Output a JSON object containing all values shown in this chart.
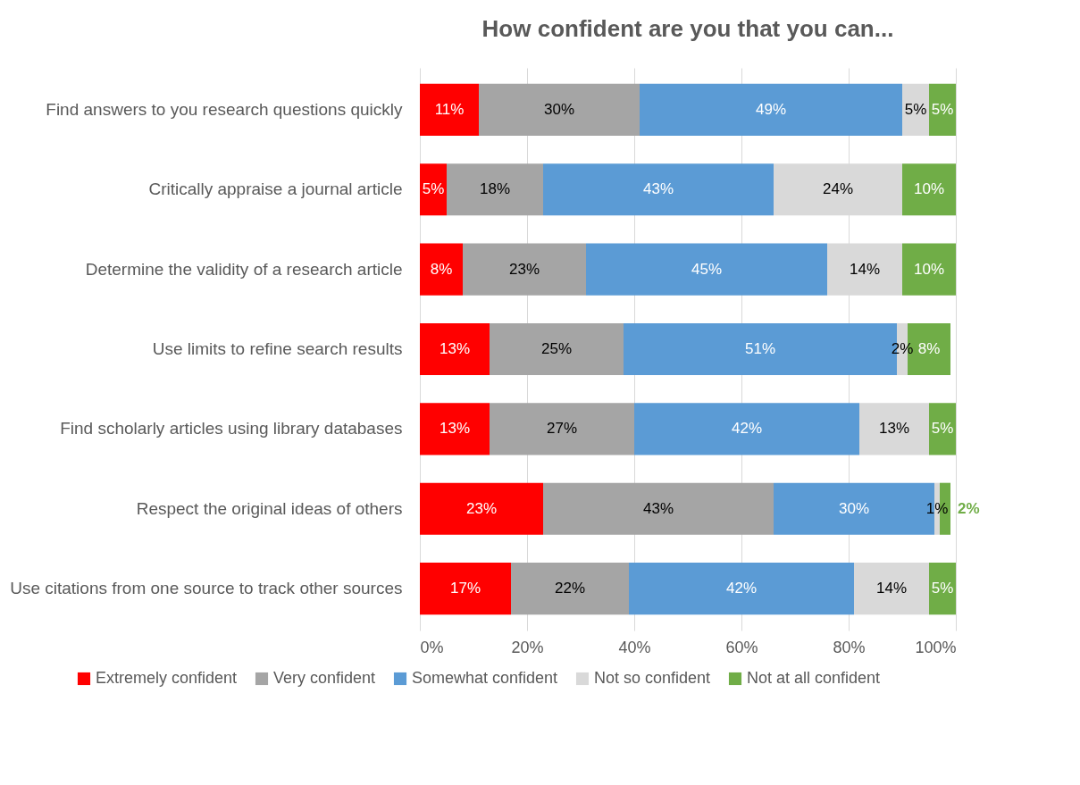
{
  "chart_data": {
    "type": "bar",
    "title": "How confident are you that you can...",
    "orientation": "horizontal",
    "stacked": true,
    "categories": [
      "Find answers to you research questions quickly",
      "Critically appraise a journal article",
      "Determine the validity of a research article",
      "Use limits to refine search results",
      "Find scholarly articles using library databases",
      "Respect the original ideas of others",
      "Use citations from one source to track other sources"
    ],
    "series": [
      {
        "name": "Extremely confident",
        "color": "#ff0000",
        "values": [
          11,
          5,
          8,
          13,
          13,
          23,
          17
        ],
        "value_labels": [
          "11%",
          "5%",
          "8%",
          "13%",
          "13%",
          "23%",
          "17%"
        ]
      },
      {
        "name": "Very confident",
        "color": "#a5a5a5",
        "values": [
          30,
          18,
          23,
          25,
          27,
          43,
          22
        ],
        "value_labels": [
          "30%",
          "18%",
          "23%",
          "25%",
          "27%",
          "43%",
          "22%"
        ]
      },
      {
        "name": "Somewhat confident",
        "color": "#5b9bd5",
        "values": [
          49,
          43,
          45,
          51,
          42,
          30,
          42
        ],
        "value_labels": [
          "49%",
          "43%",
          "45%",
          "51%",
          "42%",
          "30%",
          "42%"
        ]
      },
      {
        "name": "Not so confident",
        "color": "#d9d9d9",
        "values": [
          5,
          24,
          14,
          2,
          13,
          1,
          14
        ],
        "value_labels": [
          "5%",
          "24%",
          "14%",
          "2%",
          "13%",
          "1%",
          "14%"
        ]
      },
      {
        "name": "Not at all confident",
        "color": "#70ad47",
        "values": [
          5,
          10,
          10,
          8,
          5,
          2,
          5
        ],
        "value_labels": [
          "5%",
          "10%",
          "10%",
          "8%",
          "5%",
          "2%",
          "5%"
        ]
      }
    ],
    "xlim": [
      0,
      100
    ],
    "xticks": [
      {
        "value": 0,
        "label": "0%"
      },
      {
        "value": 20,
        "label": "20%"
      },
      {
        "value": 40,
        "label": "40%"
      },
      {
        "value": 60,
        "label": "60%"
      },
      {
        "value": 80,
        "label": "80%"
      },
      {
        "value": 100,
        "label": "100%"
      }
    ],
    "grid": "x",
    "legend": "bottom"
  }
}
